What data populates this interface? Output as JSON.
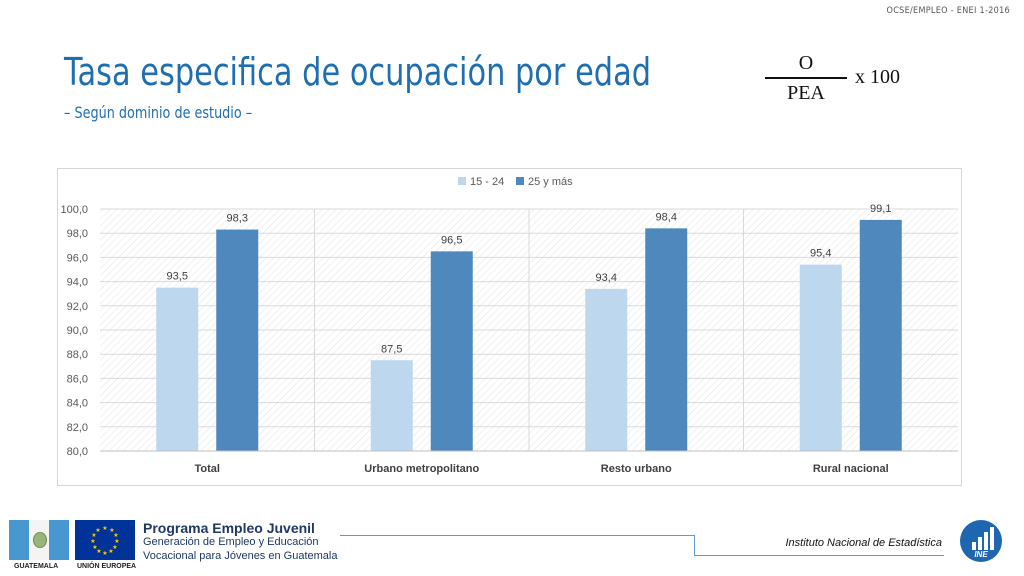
{
  "header": {
    "ref": "OCSE/EMPLEO - ENEI 1-2016"
  },
  "title": "Tasa especifica de ocupación por edad",
  "subtitle": "– Según dominio de estudio –",
  "formula": {
    "numerator": "O",
    "denominator": "PEA",
    "multiplier": "x 100"
  },
  "chart_data": {
    "type": "bar",
    "title": "",
    "xlabel": "",
    "ylabel": "",
    "categories": [
      "Total",
      "Urbano metropolitano",
      "Resto urbano",
      "Rural nacional"
    ],
    "series": [
      {
        "name": "15 - 24",
        "values": [
          93.5,
          87.5,
          93.4,
          95.4
        ],
        "labels": [
          "93,5",
          "87,5",
          "93,4",
          "95,4"
        ],
        "color": "#bdd7ee"
      },
      {
        "name": "25 y más",
        "values": [
          98.3,
          96.5,
          98.4,
          99.1
        ],
        "labels": [
          "98,3",
          "96,5",
          "98,4",
          "99,1"
        ],
        "color": "#4f88bd"
      }
    ],
    "ylim": [
      80,
      100
    ],
    "yticks": [
      "80,0",
      "82,0",
      "84,0",
      "86,0",
      "88,0",
      "90,0",
      "92,0",
      "94,0",
      "96,0",
      "98,0",
      "100,0"
    ],
    "grid": true,
    "legend": "top-center"
  },
  "footer": {
    "logo_gt_label": "GUATEMALA",
    "logo_eu_label": "UNIÓN EUROPEA",
    "program_title": "Programa Empleo Juvenil",
    "program_line1": "Generación de Empleo y Educación",
    "program_line2": "Vocacional para Jóvenes en Guatemala",
    "institute": "Instituto Nacional de Estadística",
    "ine_logo_text": "INE"
  }
}
